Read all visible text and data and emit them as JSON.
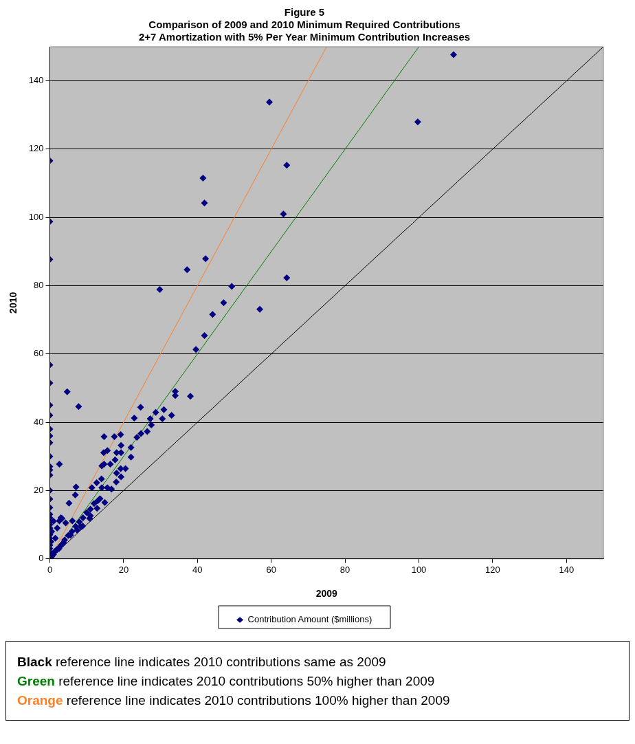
{
  "chart_data": {
    "type": "scatter",
    "title": "Figure 5",
    "subtitle": "Comparison of 2009 and 2010 Minimum Required Contributions\n2+7 Amortization with 5% Per Year Minimum Contribution Increases",
    "xlabel": "2009",
    "ylabel": "2010",
    "xlim": [
      0,
      150
    ],
    "ylim": [
      0,
      150
    ],
    "xticks": [
      0,
      20,
      40,
      60,
      80,
      100,
      120,
      140
    ],
    "yticks": [
      0,
      20,
      40,
      60,
      80,
      100,
      120,
      140
    ],
    "grid": "y",
    "legend": "bottom",
    "series": [
      {
        "name": "Contribution Amount ($millions)",
        "color": "#000080",
        "type": "scatter",
        "marker": "diamond",
        "x": [
          0,
          0,
          0,
          0,
          0,
          59.5,
          109.4,
          99.7,
          64.2,
          41.5,
          41.9,
          63.3,
          37.2,
          42.2,
          29.8,
          49.3,
          47.1,
          44.1,
          56.9,
          64.2,
          39.6,
          41.9,
          38.1,
          34,
          34,
          4.7,
          7.8,
          2.6,
          33,
          30.5,
          30.9,
          28.7,
          27.2,
          27.5,
          26.4,
          24.6,
          22.9,
          24.7,
          23.6,
          22,
          22,
          19.3,
          19.2,
          17.5,
          14.7,
          19.3,
          18.1,
          15.6,
          14.6,
          17.7,
          16.4,
          14.7,
          20.5,
          19.2,
          18.1,
          19.3,
          18,
          14.1,
          14,
          15.6,
          16.7,
          14.1,
          12.7,
          11.4,
          7.1,
          6.9,
          5.2,
          13.6,
          14.9,
          12.8,
          10.8,
          8.9,
          7.4,
          5.6,
          3.7,
          1.9,
          11,
          8.4,
          3.3,
          2.6,
          4.3,
          6.1,
          0,
          0,
          0,
          0,
          0,
          0,
          0,
          0,
          0,
          0,
          0,
          0,
          0,
          0,
          0,
          0,
          0,
          0,
          0,
          0,
          0,
          0,
          1,
          2,
          3,
          4,
          5,
          6,
          7,
          8,
          9,
          10,
          11,
          12,
          13,
          0.5,
          1.5,
          2.5,
          3.5,
          0.3,
          0.5,
          1,
          1.5,
          2,
          3
        ],
        "values": [
          116.6,
          98.8,
          87.7,
          56.8,
          51.5,
          133.8,
          147.7,
          128,
          115.3,
          111.5,
          104.2,
          101,
          84.7,
          87.9,
          78.9,
          79.8,
          75,
          71.6,
          73.1,
          82.3,
          61.3,
          65.4,
          47.6,
          49,
          47.8,
          48.9,
          44.6,
          27.7,
          42,
          41,
          43.7,
          42.9,
          41,
          39.2,
          37.3,
          44.4,
          41.2,
          36.7,
          35.6,
          32.6,
          29.8,
          33.2,
          36.4,
          35.8,
          35.8,
          31.1,
          31.1,
          31.7,
          31.1,
          29,
          27.7,
          27.7,
          26.4,
          26.4,
          25.1,
          24,
          22.5,
          27.2,
          23.4,
          20.8,
          20.4,
          20.8,
          22.3,
          20.8,
          21,
          18.7,
          16.3,
          17.6,
          16.5,
          14.8,
          11.8,
          9.6,
          8.4,
          6.9,
          4.7,
          2.6,
          12.6,
          9.4,
          11.8,
          11.1,
          10.5,
          11.1,
          45,
          42,
          38,
          36,
          34,
          30,
          27,
          26,
          24.5,
          20,
          17.5,
          15,
          13,
          12,
          11,
          10,
          9,
          7,
          6,
          4,
          3,
          2,
          1.3,
          2.8,
          3.9,
          5.5,
          6.8,
          8,
          9.5,
          10.8,
          12,
          13.5,
          14.5,
          16.2,
          17,
          0.6,
          2.3,
          3,
          4.4,
          5,
          8,
          11,
          6,
          9,
          12
        ]
      },
      {
        "color": "#000000",
        "type": "line",
        "marker": "none",
        "x": [
          0,
          150
        ],
        "values": [
          0,
          150
        ]
      },
      {
        "color": "#008000",
        "type": "line",
        "marker": "none",
        "x": [
          0,
          100
        ],
        "values": [
          0,
          150
        ]
      },
      {
        "color": "#ff7f27",
        "type": "line",
        "marker": "none",
        "x": [
          0,
          75
        ],
        "values": [
          0,
          150
        ]
      }
    ],
    "annotations": [
      "Black reference line indicates 2010 contributions same as 2009",
      "Green reference line indicates 2010 contributions 50% higher than 2009",
      "Orange reference line indicates 2010 contributions 100% higher than 2009"
    ]
  }
}
